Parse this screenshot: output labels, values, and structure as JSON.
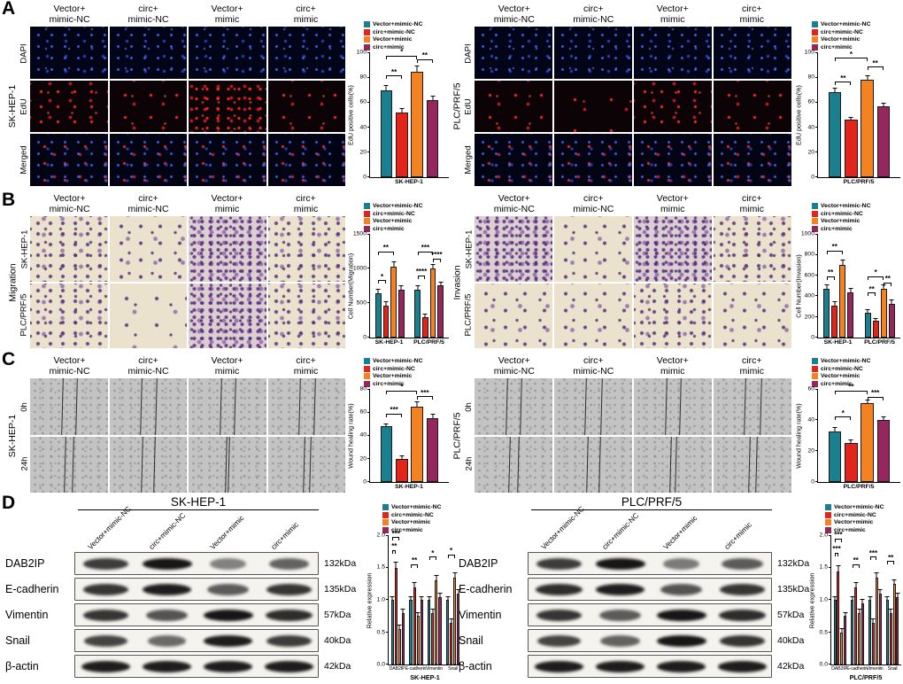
{
  "figure": {
    "panel_labels": [
      "A",
      "B",
      "C",
      "D"
    ],
    "group_names": [
      "Vector+mimic-NC",
      "circ+mimic-NC",
      "Vector+mimic",
      "circ+mimic"
    ],
    "group_colors": [
      "#1a7f8e",
      "#e1251b",
      "#f58220",
      "#96275d"
    ],
    "column_headers": [
      "Vector+\nmimic-NC",
      "circ+\nmimic-NC",
      "Vector+\nmimic",
      "circ+\nmimic"
    ],
    "cell_lines": [
      "SK-HEP-1",
      "PLC/PRF/5"
    ]
  },
  "panelA": {
    "row_labels": [
      "DAPI",
      "EdU",
      "Merged"
    ],
    "blocks": [
      {
        "cell_line": "SK-HEP-1",
        "edu_density": [
          3,
          2,
          4,
          2
        ]
      },
      {
        "cell_line": "PLC/PRF/5",
        "edu_density": [
          2,
          1,
          3,
          2
        ]
      }
    ]
  },
  "panelB": {
    "blocks": [
      {
        "assay": "Migration",
        "row_labels": [
          "SK-HEP-1",
          "PLC/PRF/5"
        ],
        "density": [
          [
            3,
            2,
            4,
            3
          ],
          [
            3,
            1,
            4,
            3
          ]
        ]
      },
      {
        "assay": "Invasion",
        "row_labels": [
          "SK-HEP-1",
          "PLC/PRF/5"
        ],
        "density": [
          [
            4,
            2,
            4,
            3
          ],
          [
            2,
            2,
            3,
            2
          ]
        ]
      }
    ]
  },
  "panelC": {
    "row_labels": [
      "0h",
      "24h"
    ],
    "blocks": [
      {
        "cell_line": "SK-HEP-1",
        "lines": [
          [
            [
              41,
              59
            ],
            [
              40,
              60
            ],
            [
              41,
              59
            ],
            [
              40,
              60
            ]
          ],
          [
            [
              45,
              55
            ],
            [
              42,
              58
            ],
            [
              48.5,
              51.5
            ],
            [
              46,
              54
            ]
          ]
        ]
      },
      {
        "cell_line": "PLC/PRF/5",
        "lines": [
          [
            [
              41,
              59
            ],
            [
              40,
              60
            ],
            [
              41,
              59
            ],
            [
              40,
              60
            ]
          ],
          [
            [
              44,
              56
            ],
            [
              42.5,
              57.5
            ],
            [
              47,
              53
            ],
            [
              45.5,
              54.5
            ]
          ]
        ]
      }
    ]
  },
  "panelD": {
    "blocks": [
      {
        "cell_line": "SK-HEP-1",
        "proteins": [
          {
            "name": "DAB2IP",
            "kda": "132kDa",
            "bands": [
              0.75,
              1.0,
              0.3,
              0.5
            ]
          },
          {
            "name": "E-cadherin",
            "kda": "135kDa",
            "bands": [
              0.8,
              0.95,
              0.55,
              0.8
            ]
          },
          {
            "name": "Vimentin",
            "kda": "57kDa",
            "bands": [
              0.8,
              0.6,
              1.0,
              0.85
            ]
          },
          {
            "name": "Snail",
            "kda": "40kDa",
            "bands": [
              0.7,
              0.45,
              0.95,
              0.75
            ]
          },
          {
            "name": "β-actin",
            "kda": "42kDa",
            "bands": [
              0.95,
              0.95,
              0.95,
              0.95
            ]
          }
        ]
      },
      {
        "cell_line": "PLC/PRF/5",
        "proteins": [
          {
            "name": "DAB2IP",
            "kda": "132kDa",
            "bands": [
              0.75,
              1.0,
              0.35,
              0.55
            ]
          },
          {
            "name": "E-cadherin",
            "kda": "135kDa",
            "bands": [
              0.85,
              0.95,
              0.6,
              0.8
            ]
          },
          {
            "name": "Vimentin",
            "kda": "57kDa",
            "bands": [
              0.8,
              0.55,
              1.0,
              0.85
            ]
          },
          {
            "name": "Snail",
            "kda": "40kDa",
            "bands": [
              0.7,
              0.5,
              1.0,
              0.8
            ]
          },
          {
            "name": "β-actin",
            "kda": "42kDa",
            "bands": [
              0.95,
              0.95,
              0.95,
              0.95
            ]
          }
        ]
      }
    ]
  },
  "chart_data": [
    {
      "id": "chartA1",
      "type": "bar",
      "ylabel": "EdU positive cells(%)",
      "categories": [
        "SK-HEP-1"
      ],
      "series": [
        {
          "name": "Vector+mimic-NC",
          "values": [
            70
          ],
          "errors": [
            3
          ]
        },
        {
          "name": "circ+mimic-NC",
          "values": [
            52
          ],
          "errors": [
            3
          ]
        },
        {
          "name": "Vector+mimic",
          "values": [
            85
          ],
          "errors": [
            4
          ]
        },
        {
          "name": "circ+mimic",
          "values": [
            62
          ],
          "errors": [
            3
          ]
        }
      ],
      "ylim": [
        0,
        100
      ],
      "yticks": [
        "0",
        "20",
        "40",
        "60",
        "80",
        "100"
      ],
      "legend_position": "top",
      "annotations": [
        {
          "group": 0,
          "b1": 0,
          "b2": 1,
          "y": 79,
          "label": "**"
        },
        {
          "group": 0,
          "b1": 0,
          "b2": 2,
          "y": 95,
          "label": "*"
        },
        {
          "group": 0,
          "b1": 2,
          "b2": 3,
          "y": 92,
          "label": "**"
        }
      ]
    },
    {
      "id": "chartA2",
      "type": "bar",
      "ylabel": "EdU positive cells(%)",
      "categories": [
        "PLC/PRF/5"
      ],
      "series": [
        {
          "name": "Vector+mimic-NC",
          "values": [
            68
          ],
          "errors": [
            3
          ]
        },
        {
          "name": "circ+mimic-NC",
          "values": [
            46
          ],
          "errors": [
            2
          ]
        },
        {
          "name": "Vector+mimic",
          "values": [
            78
          ],
          "errors": [
            3
          ]
        },
        {
          "name": "circ+mimic",
          "values": [
            57
          ],
          "errors": [
            2
          ]
        }
      ],
      "ylim": [
        0,
        100
      ],
      "yticks": [
        "0",
        "20",
        "40",
        "60",
        "80",
        "100"
      ],
      "legend_position": "top",
      "annotations": [
        {
          "group": 0,
          "b1": 0,
          "b2": 1,
          "y": 74,
          "label": "**"
        },
        {
          "group": 0,
          "b1": 0,
          "b2": 2,
          "y": 93,
          "label": "*"
        },
        {
          "group": 0,
          "b1": 2,
          "b2": 3,
          "y": 86,
          "label": "**"
        }
      ]
    },
    {
      "id": "chartB1",
      "type": "bar",
      "ylabel": "Cell Number(Migration)",
      "categories": [
        "SK-HEP-1",
        "PLC/PRF/5"
      ],
      "series": [
        {
          "name": "Vector+mimic-NC",
          "values": [
            650,
            700
          ],
          "errors": [
            40,
            45
          ]
        },
        {
          "name": "circ+mimic-NC",
          "values": [
            470,
            300
          ],
          "errors": [
            40,
            30
          ]
        },
        {
          "name": "Vector+mimic",
          "values": [
            1030,
            1000
          ],
          "errors": [
            60,
            55
          ]
        },
        {
          "name": "circ+mimic",
          "values": [
            700,
            760
          ],
          "errors": [
            45,
            40
          ]
        }
      ],
      "ylim": [
        0,
        1500
      ],
      "yticks": [
        "0",
        "500",
        "1000",
        "1500"
      ],
      "legend_position": "top",
      "annotations": [
        {
          "group": 0,
          "b1": 0,
          "b2": 1,
          "y": 780,
          "label": "*"
        },
        {
          "group": 0,
          "b1": 0,
          "b2": 2,
          "y": 1200,
          "label": "**"
        },
        {
          "group": 1,
          "b1": 0,
          "b2": 1,
          "y": 850,
          "label": "****"
        },
        {
          "group": 1,
          "b1": 0,
          "b2": 2,
          "y": 1200,
          "label": "***"
        },
        {
          "group": 1,
          "b1": 2,
          "b2": 3,
          "y": 1100,
          "label": "****"
        }
      ]
    },
    {
      "id": "chartB2",
      "type": "bar",
      "ylabel": "Cell Number(Invasion)",
      "categories": [
        "SK-HEP-1",
        "PLC/PRF/5"
      ],
      "series": [
        {
          "name": "Vector+mimic-NC",
          "values": [
            470,
            240
          ],
          "errors": [
            35,
            25
          ]
        },
        {
          "name": "circ+mimic-NC",
          "values": [
            310,
            160
          ],
          "errors": [
            30,
            20
          ]
        },
        {
          "name": "Vector+mimic",
          "values": [
            700,
            470
          ],
          "errors": [
            50,
            35
          ]
        },
        {
          "name": "circ+mimic",
          "values": [
            440,
            330
          ],
          "errors": [
            35,
            30
          ]
        }
      ],
      "ylim": [
        0,
        1000
      ],
      "yticks": [
        "0",
        "200",
        "400",
        "600",
        "800",
        "1000"
      ],
      "legend_position": "top",
      "annotations": [
        {
          "group": 0,
          "b1": 0,
          "b2": 1,
          "y": 560,
          "label": "**"
        },
        {
          "group": 0,
          "b1": 0,
          "b2": 2,
          "y": 810,
          "label": "**"
        },
        {
          "group": 1,
          "b1": 0,
          "b2": 1,
          "y": 400,
          "label": "**"
        },
        {
          "group": 1,
          "b1": 0,
          "b2": 2,
          "y": 560,
          "label": "*"
        },
        {
          "group": 1,
          "b1": 2,
          "b2": 3,
          "y": 500,
          "label": "**"
        }
      ]
    },
    {
      "id": "chartC1",
      "type": "bar",
      "ylabel": "Wound healing rate(%)",
      "categories": [
        "SK-HEP-1"
      ],
      "series": [
        {
          "name": "Vector+mimic-NC",
          "values": [
            48
          ],
          "errors": [
            2
          ]
        },
        {
          "name": "circ+mimic-NC",
          "values": [
            20
          ],
          "errors": [
            2
          ]
        },
        {
          "name": "Vector+mimic",
          "values": [
            65
          ],
          "errors": [
            4
          ]
        },
        {
          "name": "circ+mimic",
          "values": [
            55
          ],
          "errors": [
            3
          ]
        }
      ],
      "ylim": [
        0,
        80
      ],
      "yticks": [
        "0",
        "20",
        "40",
        "60",
        "80"
      ],
      "legend_position": "top",
      "annotations": [
        {
          "group": 0,
          "b1": 0,
          "b2": 1,
          "y": 56,
          "label": "***"
        },
        {
          "group": 0,
          "b1": 0,
          "b2": 2,
          "y": 76,
          "label": "*"
        },
        {
          "group": 0,
          "b1": 2,
          "b2": 3,
          "y": 71,
          "label": "***"
        }
      ]
    },
    {
      "id": "chartC2",
      "type": "bar",
      "ylabel": "Wound healing rate(%)",
      "categories": [
        "PLC/PRF/5"
      ],
      "series": [
        {
          "name": "Vector+mimic-NC",
          "values": [
            33
          ],
          "errors": [
            2
          ]
        },
        {
          "name": "circ+mimic-NC",
          "values": [
            25
          ],
          "errors": [
            2
          ]
        },
        {
          "name": "Vector+mimic",
          "values": [
            51
          ],
          "errors": [
            2
          ]
        },
        {
          "name": "circ+mimic",
          "values": [
            40
          ],
          "errors": [
            2
          ]
        }
      ],
      "ylim": [
        0,
        60
      ],
      "yticks": [
        "0",
        "20",
        "40",
        "60"
      ],
      "legend_position": "top",
      "annotations": [
        {
          "group": 0,
          "b1": 0,
          "b2": 1,
          "y": 40,
          "label": "*"
        },
        {
          "group": 0,
          "b1": 0,
          "b2": 2,
          "y": 57,
          "label": "**"
        },
        {
          "group": 0,
          "b1": 2,
          "b2": 3,
          "y": 53,
          "label": "***"
        }
      ]
    },
    {
      "id": "chartD1",
      "type": "bar",
      "ylabel": "Relative expression",
      "xlabel": "SK-HEP-1",
      "categories": [
        "DAB2IP",
        "E-cadherin",
        "Vimentin",
        "Snail"
      ],
      "series": [
        {
          "name": "Vector+mimic-NC",
          "values": [
            1.0,
            1.0,
            1.0,
            1.0
          ],
          "errors": [
            0.05,
            0.05,
            0.05,
            0.05
          ]
        },
        {
          "name": "circ+mimic-NC",
          "values": [
            1.5,
            1.2,
            0.8,
            0.65
          ],
          "errors": [
            0.08,
            0.06,
            0.05,
            0.05
          ]
        },
        {
          "name": "Vector+mimic",
          "values": [
            0.55,
            0.75,
            1.3,
            1.35
          ],
          "errors": [
            0.05,
            0.05,
            0.07,
            0.07
          ]
        },
        {
          "name": "circ+mimic",
          "values": [
            0.8,
            1.0,
            1.05,
            1.1
          ],
          "errors": [
            0.05,
            0.05,
            0.05,
            0.06
          ]
        }
      ],
      "ylim": [
        0,
        2
      ],
      "yticks": [
        "0.0",
        "0.5",
        "1.0",
        "1.5",
        "2.0"
      ],
      "legend_position": "top",
      "annotations": [
        {
          "group": 0,
          "b1": 0,
          "b2": 1,
          "y": 1.72,
          "label": "**"
        },
        {
          "group": 0,
          "b1": 0,
          "b2": 2,
          "y": 1.92,
          "label": "***"
        },
        {
          "group": 1,
          "b1": 0,
          "b2": 2,
          "y": 1.5,
          "label": "**"
        },
        {
          "group": 2,
          "b1": 0,
          "b2": 2,
          "y": 1.62,
          "label": "*"
        },
        {
          "group": 3,
          "b1": 0,
          "b2": 2,
          "y": 1.65,
          "label": "*"
        }
      ]
    },
    {
      "id": "chartD2",
      "type": "bar",
      "ylabel": "Relative expression",
      "xlabel": "PLC/PRF/5",
      "categories": [
        "DAB2IP",
        "E-cadherin",
        "Vimentin",
        "Snail"
      ],
      "series": [
        {
          "name": "Vector+mimic-NC",
          "values": [
            1.0,
            1.0,
            1.0,
            1.0
          ],
          "errors": [
            0.05,
            0.05,
            0.05,
            0.05
          ]
        },
        {
          "name": "circ+mimic-NC",
          "values": [
            1.45,
            1.2,
            0.65,
            0.8
          ],
          "errors": [
            0.07,
            0.06,
            0.05,
            0.05
          ]
        },
        {
          "name": "Vector+mimic",
          "values": [
            0.5,
            0.8,
            1.35,
            1.25
          ],
          "errors": [
            0.05,
            0.05,
            0.07,
            0.06
          ]
        },
        {
          "name": "circ+mimic",
          "values": [
            0.75,
            0.95,
            1.1,
            1.05
          ],
          "errors": [
            0.05,
            0.05,
            0.05,
            0.05
          ]
        }
      ],
      "ylim": [
        0,
        2
      ],
      "yticks": [
        "0.0",
        "0.5",
        "1.0",
        "1.5",
        "2.0"
      ],
      "legend_position": "top",
      "annotations": [
        {
          "group": 0,
          "b1": 0,
          "b2": 1,
          "y": 1.68,
          "label": "***"
        },
        {
          "group": 0,
          "b1": 0,
          "b2": 2,
          "y": 1.9,
          "label": "***"
        },
        {
          "group": 1,
          "b1": 0,
          "b2": 2,
          "y": 1.5,
          "label": "**"
        },
        {
          "group": 2,
          "b1": 0,
          "b2": 2,
          "y": 1.62,
          "label": "***"
        },
        {
          "group": 3,
          "b1": 0,
          "b2": 2,
          "y": 1.55,
          "label": "**"
        }
      ]
    }
  ]
}
